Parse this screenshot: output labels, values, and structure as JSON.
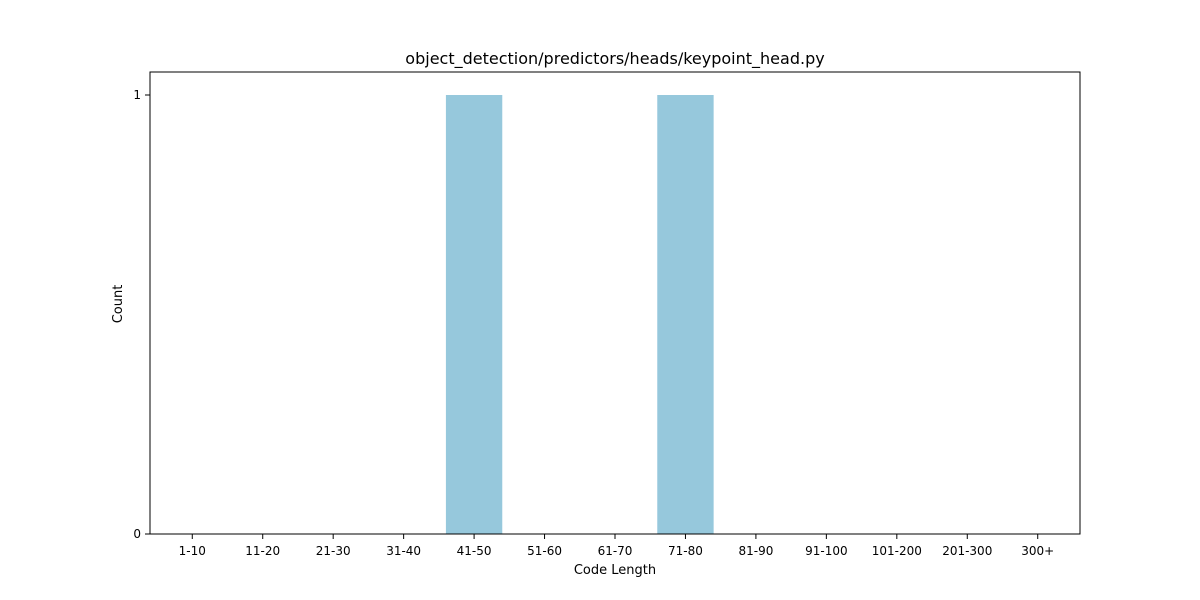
{
  "chart_data": {
    "type": "bar",
    "title": "object_detection/predictors/heads/keypoint_head.py",
    "xlabel": "Code Length",
    "ylabel": "Count",
    "categories": [
      "1-10",
      "11-20",
      "21-30",
      "31-40",
      "41-50",
      "51-60",
      "61-70",
      "71-80",
      "81-90",
      "91-100",
      "101-200",
      "201-300",
      "300+"
    ],
    "values": [
      0,
      0,
      0,
      0,
      1,
      0,
      0,
      1,
      0,
      0,
      0,
      0,
      0
    ],
    "ylim": [
      0,
      1
    ],
    "yticks": [
      0,
      1
    ],
    "grid": false,
    "legend": "none",
    "bar_color": "#96c8dc"
  }
}
